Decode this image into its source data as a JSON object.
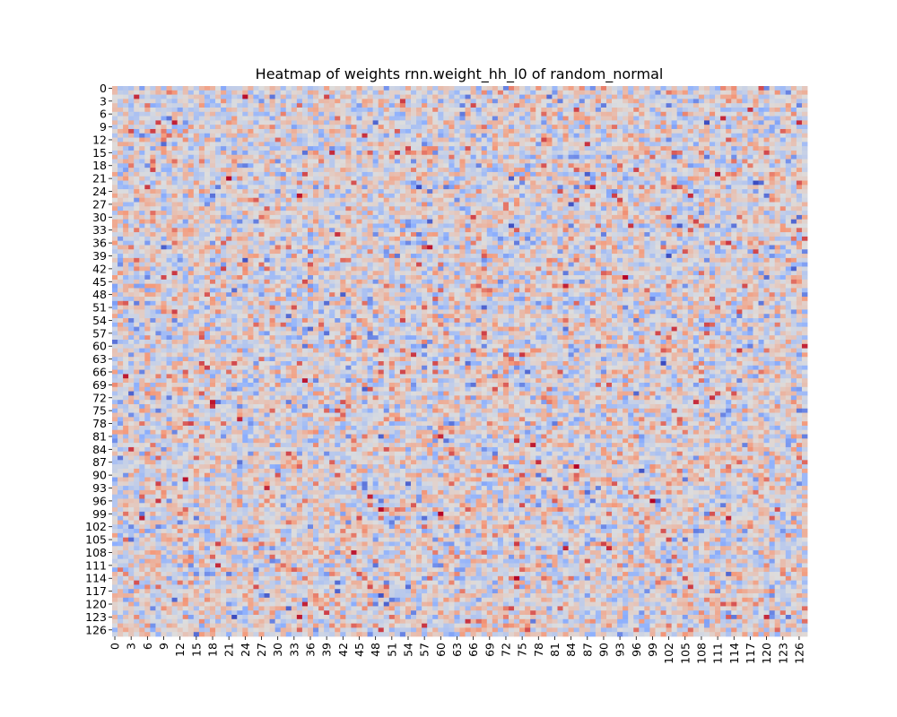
{
  "chart_data": {
    "type": "heatmap",
    "title": "Heatmap of weights rnn.weight_hh_l0 of random_normal",
    "xlabel": "",
    "ylabel": "",
    "rows": 128,
    "cols": 128,
    "x_tick_labels": [
      "0",
      "3",
      "6",
      "9",
      "12",
      "15",
      "18",
      "21",
      "24",
      "27",
      "30",
      "33",
      "36",
      "39",
      "42",
      "45",
      "48",
      "51",
      "54",
      "57",
      "60",
      "63",
      "66",
      "69",
      "72",
      "75",
      "78",
      "81",
      "84",
      "87",
      "90",
      "93",
      "96",
      "99",
      "102",
      "105",
      "108",
      "111",
      "114",
      "117",
      "120",
      "123",
      "126"
    ],
    "y_tick_labels": [
      "0",
      "3",
      "6",
      "9",
      "12",
      "15",
      "18",
      "21",
      "24",
      "27",
      "30",
      "33",
      "36",
      "39",
      "42",
      "45",
      "48",
      "51",
      "54",
      "57",
      "60",
      "63",
      "66",
      "69",
      "72",
      "75",
      "78",
      "81",
      "84",
      "87",
      "90",
      "93",
      "96",
      "99",
      "102",
      "105",
      "108",
      "111",
      "114",
      "117",
      "120",
      "123",
      "126"
    ],
    "colormap": "coolwarm",
    "colorbar": false,
    "grid": false,
    "value_range": [
      -3,
      3
    ],
    "distribution": "random_normal",
    "notable_cells": [
      {
        "row": 96,
        "col": 99,
        "value": 3.1
      },
      {
        "row": 96,
        "col": 100,
        "value": -2.6
      },
      {
        "row": 2,
        "col": 4,
        "value": 2.6
      },
      {
        "row": 10,
        "col": 7,
        "value": 2.4
      },
      {
        "row": 20,
        "col": 35,
        "value": 2.3
      },
      {
        "row": 25,
        "col": 106,
        "value": 2.6
      },
      {
        "row": 31,
        "col": 58,
        "value": -2.7
      },
      {
        "row": 31,
        "col": 125,
        "value": -2.6
      },
      {
        "row": 37,
        "col": 9,
        "value": -2.7
      },
      {
        "row": 48,
        "col": 42,
        "value": -2.7
      },
      {
        "row": 56,
        "col": 83,
        "value": -2.4
      },
      {
        "row": 62,
        "col": 75,
        "value": 2.5
      },
      {
        "row": 120,
        "col": 35,
        "value": 2.7
      },
      {
        "row": 122,
        "col": 39,
        "value": 2.4
      },
      {
        "row": 70,
        "col": 70,
        "value": 2.2
      },
      {
        "row": 105,
        "col": 102,
        "value": 2.3
      }
    ]
  }
}
